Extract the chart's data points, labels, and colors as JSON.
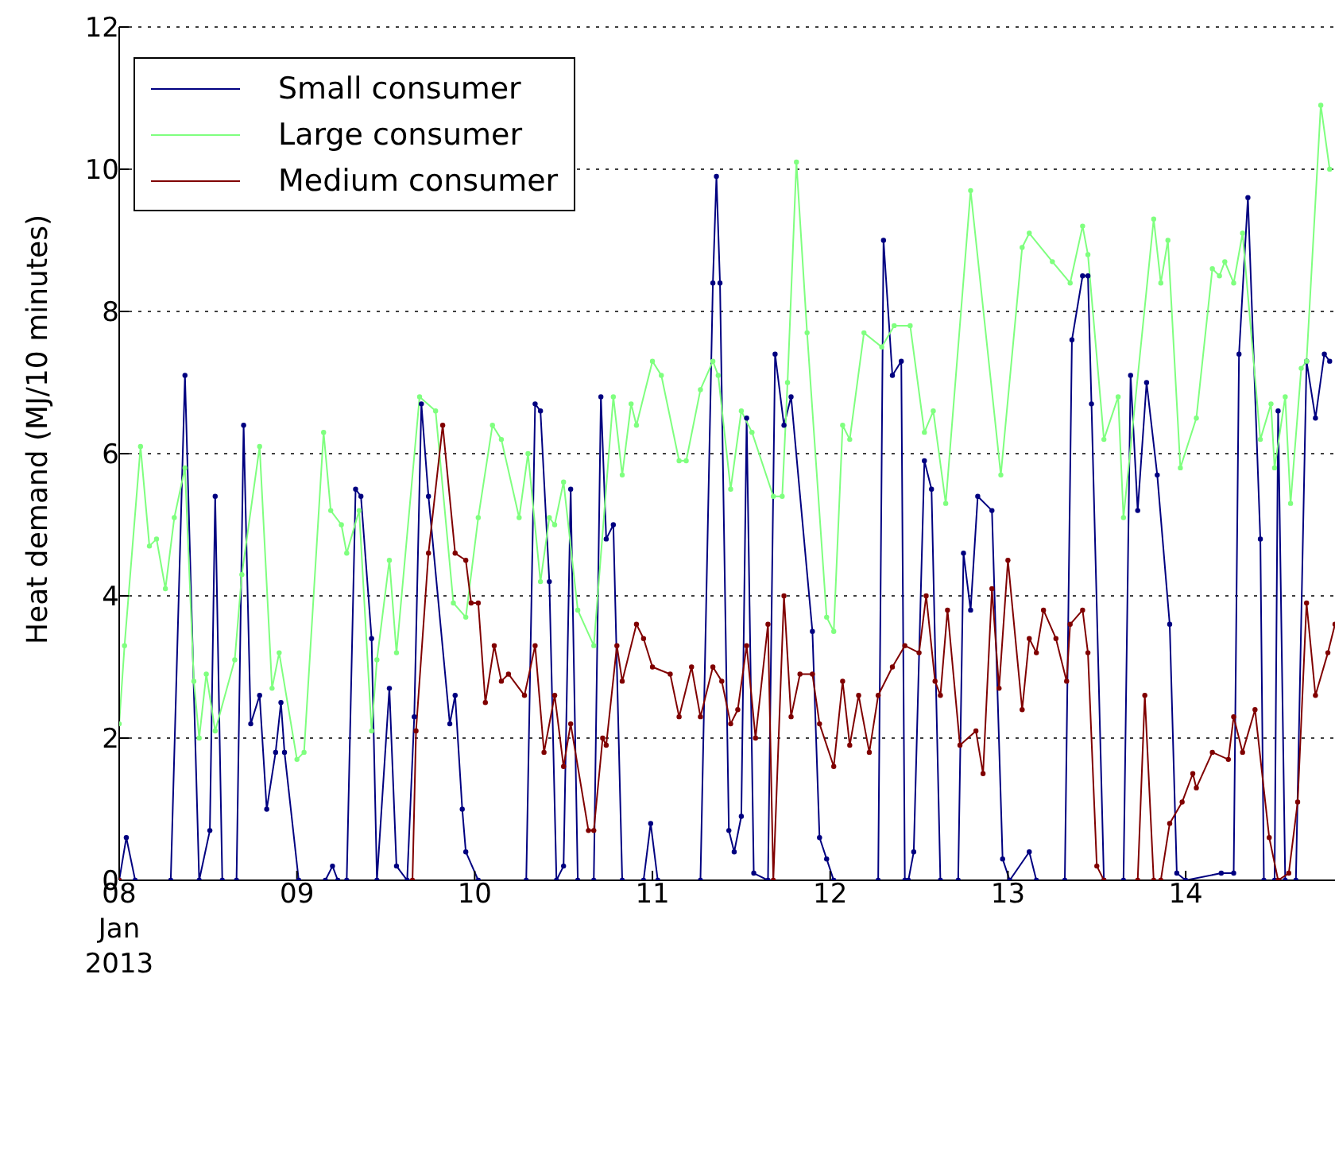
{
  "chart_data": {
    "type": "line",
    "ylabel": "Heat demand (MJ/10 minutes)",
    "xlim": [
      8,
      14.84
    ],
    "xticks": [
      {
        "value": 8,
        "label": "08\nJan\n2013"
      },
      {
        "value": 9,
        "label": "09"
      },
      {
        "value": 10,
        "label": "10"
      },
      {
        "value": 11,
        "label": "11"
      },
      {
        "value": 12,
        "label": "12"
      },
      {
        "value": 13,
        "label": "13"
      },
      {
        "value": 14,
        "label": "14"
      }
    ],
    "ylim": [
      0,
      12
    ],
    "yticks": [
      0,
      2,
      4,
      6,
      8,
      10,
      12
    ],
    "grid": "y",
    "legend": "top left",
    "marker": "circle",
    "line_style": "solid",
    "series": [
      {
        "name": "Small consumer",
        "color": "#000080",
        "x": [
          8.0,
          8.04,
          8.09,
          8.29,
          8.37,
          8.45,
          8.51,
          8.54,
          8.58,
          8.66,
          8.7,
          8.74,
          8.79,
          8.83,
          8.88,
          8.91,
          8.93,
          9.01,
          9.16,
          9.2,
          9.23,
          9.28,
          9.33,
          9.36,
          9.42,
          9.45,
          9.52,
          9.56,
          9.62,
          9.66,
          9.7,
          9.74,
          9.86,
          9.89,
          9.93,
          9.95,
          10.02,
          10.29,
          10.34,
          10.37,
          10.42,
          10.46,
          10.5,
          10.54,
          10.58,
          10.67,
          10.71,
          10.74,
          10.78,
          10.83,
          10.95,
          10.99,
          11.03,
          11.27,
          11.34,
          11.36,
          11.38,
          11.43,
          11.46,
          11.5,
          11.53,
          11.57,
          11.65,
          11.69,
          11.74,
          11.78,
          11.9,
          11.94,
          11.98,
          12.02,
          12.27,
          12.3,
          12.35,
          12.4,
          12.42,
          12.44,
          12.47,
          12.53,
          12.57,
          12.62,
          12.72,
          12.75,
          12.79,
          12.83,
          12.91,
          12.97,
          13.01,
          13.12,
          13.16,
          13.32,
          13.36,
          13.42,
          13.45,
          13.47,
          13.54,
          13.65,
          13.69,
          13.73,
          13.78,
          13.84,
          13.91,
          13.95,
          14.0,
          14.2,
          14.27,
          14.3,
          14.35,
          14.42,
          14.44,
          14.5,
          14.52,
          14.56,
          14.62,
          14.68,
          14.73,
          14.78,
          14.81
        ],
        "values": [
          0,
          0.6,
          0,
          0,
          7.1,
          0,
          0.7,
          5.4,
          0,
          0,
          6.4,
          2.2,
          2.6,
          1.0,
          1.8,
          2.5,
          1.8,
          0,
          0,
          0.2,
          0,
          0,
          5.5,
          5.4,
          3.4,
          0,
          2.7,
          0.2,
          0,
          2.3,
          6.7,
          5.4,
          2.2,
          2.6,
          1.0,
          0.4,
          0,
          0,
          6.7,
          6.6,
          4.2,
          0,
          0.2,
          5.5,
          0,
          0,
          6.8,
          4.8,
          5.0,
          0,
          0,
          0.8,
          0,
          0,
          8.4,
          9.9,
          8.4,
          0.7,
          0.4,
          0.9,
          6.5,
          0.1,
          0,
          7.4,
          6.4,
          6.8,
          3.5,
          0.6,
          0.3,
          0,
          0,
          9.0,
          7.1,
          7.3,
          0,
          0,
          0.4,
          5.9,
          5.5,
          0,
          0,
          4.6,
          3.8,
          5.4,
          5.2,
          0.3,
          0,
          0.4,
          0,
          0,
          7.6,
          8.5,
          8.5,
          6.7,
          0,
          0,
          7.1,
          5.2,
          7.0,
          5.7,
          3.6,
          0.1,
          0,
          0.1,
          0.1,
          7.4,
          9.6,
          4.8,
          0,
          0,
          6.6,
          0,
          0,
          7.3,
          6.5,
          7.4,
          7.3
        ]
      },
      {
        "name": "Large consumer",
        "color": "#7fff7f",
        "x": [
          8.0,
          8.03,
          8.12,
          8.17,
          8.21,
          8.26,
          8.31,
          8.37,
          8.42,
          8.45,
          8.49,
          8.54,
          8.65,
          8.69,
          8.79,
          8.86,
          8.9,
          9.0,
          9.04,
          9.15,
          9.19,
          9.25,
          9.28,
          9.35,
          9.42,
          9.45,
          9.52,
          9.56,
          9.69,
          9.78,
          9.88,
          9.95,
          10.02,
          10.1,
          10.15,
          10.25,
          10.3,
          10.37,
          10.42,
          10.45,
          10.5,
          10.58,
          10.67,
          10.78,
          10.83,
          10.88,
          10.91,
          11.0,
          11.05,
          11.15,
          11.19,
          11.27,
          11.34,
          11.37,
          11.44,
          11.5,
          11.56,
          11.68,
          11.73,
          11.76,
          11.81,
          11.87,
          11.98,
          12.02,
          12.07,
          12.11,
          12.19,
          12.29,
          12.36,
          12.45,
          12.53,
          12.58,
          12.65,
          12.79,
          12.96,
          13.08,
          13.12,
          13.25,
          13.35,
          13.42,
          13.45,
          13.54,
          13.62,
          13.65,
          13.82,
          13.86,
          13.9,
          13.97,
          14.06,
          14.15,
          14.19,
          14.22,
          14.27,
          14.32,
          14.42,
          14.48,
          14.5,
          14.56,
          14.59,
          14.65,
          14.68,
          14.76,
          14.81
        ],
        "values": [
          2.2,
          3.3,
          6.1,
          4.7,
          4.8,
          4.1,
          5.1,
          5.8,
          2.8,
          2.0,
          2.9,
          2.1,
          3.1,
          4.3,
          6.1,
          2.7,
          3.2,
          1.7,
          1.8,
          6.3,
          5.2,
          5.0,
          4.6,
          5.2,
          2.1,
          3.1,
          4.5,
          3.2,
          6.8,
          6.6,
          3.9,
          3.7,
          5.1,
          6.4,
          6.2,
          5.1,
          6.0,
          4.2,
          5.1,
          5.0,
          5.6,
          3.8,
          3.3,
          6.8,
          5.7,
          6.7,
          6.4,
          7.3,
          7.1,
          5.9,
          5.9,
          6.9,
          7.3,
          7.1,
          5.5,
          6.6,
          6.3,
          5.4,
          5.4,
          7.0,
          10.1,
          7.7,
          3.7,
          3.5,
          6.4,
          6.2,
          7.7,
          7.5,
          7.8,
          7.8,
          6.3,
          6.6,
          5.3,
          9.7,
          5.7,
          8.9,
          9.1,
          8.7,
          8.4,
          9.2,
          8.8,
          6.2,
          6.8,
          5.1,
          9.3,
          8.4,
          9.0,
          5.8,
          6.5,
          8.6,
          8.5,
          8.7,
          8.4,
          9.1,
          6.2,
          6.7,
          5.8,
          6.8,
          5.3,
          7.2,
          7.3,
          10.9,
          10.0
        ]
      },
      {
        "name": "Medium consumer",
        "color": "#800000",
        "x": [
          8.0,
          9.65,
          9.67,
          9.74,
          9.82,
          9.89,
          9.95,
          9.98,
          10.02,
          10.06,
          10.11,
          10.15,
          10.19,
          10.28,
          10.34,
          10.39,
          10.45,
          10.5,
          10.54,
          10.64,
          10.67,
          10.72,
          10.74,
          10.8,
          10.83,
          10.91,
          10.95,
          11.0,
          11.1,
          11.15,
          11.22,
          11.27,
          11.34,
          11.39,
          11.44,
          11.48,
          11.53,
          11.58,
          11.65,
          11.68,
          11.74,
          11.78,
          11.83,
          11.9,
          11.94,
          12.02,
          12.07,
          12.11,
          12.16,
          12.22,
          12.27,
          12.35,
          12.42,
          12.5,
          12.54,
          12.59,
          12.62,
          12.66,
          12.73,
          12.82,
          12.86,
          12.91,
          12.95,
          13.0,
          13.08,
          13.12,
          13.16,
          13.2,
          13.27,
          13.33,
          13.35,
          13.42,
          13.45,
          13.5,
          13.54,
          13.73,
          13.77,
          13.82,
          13.86,
          13.91,
          13.98,
          14.04,
          14.06,
          14.15,
          14.24,
          14.27,
          14.32,
          14.39,
          14.47,
          14.52,
          14.58,
          14.63,
          14.68,
          14.73,
          14.8,
          14.84
        ],
        "values": [
          0,
          0,
          2.1,
          4.6,
          6.4,
          4.6,
          4.5,
          3.9,
          3.9,
          2.5,
          3.3,
          2.8,
          2.9,
          2.6,
          3.3,
          1.8,
          2.6,
          1.6,
          2.2,
          0.7,
          0.7,
          2.0,
          1.9,
          3.3,
          2.8,
          3.6,
          3.4,
          3.0,
          2.9,
          2.3,
          3.0,
          2.3,
          3.0,
          2.8,
          2.2,
          2.4,
          3.3,
          2.0,
          3.6,
          0,
          4.0,
          2.3,
          2.9,
          2.9,
          2.2,
          1.6,
          2.8,
          1.9,
          2.6,
          1.8,
          2.6,
          3.0,
          3.3,
          3.2,
          4.0,
          2.8,
          2.6,
          3.8,
          1.9,
          2.1,
          1.5,
          4.1,
          2.7,
          4.5,
          2.4,
          3.4,
          3.2,
          3.8,
          3.4,
          2.8,
          3.6,
          3.8,
          3.2,
          0.2,
          0,
          0,
          2.6,
          0,
          0,
          0.8,
          1.1,
          1.5,
          1.3,
          1.8,
          1.7,
          2.3,
          1.8,
          2.4,
          0.6,
          0,
          0.1,
          1.1,
          3.9,
          2.6,
          3.2,
          3.6
        ]
      }
    ]
  }
}
